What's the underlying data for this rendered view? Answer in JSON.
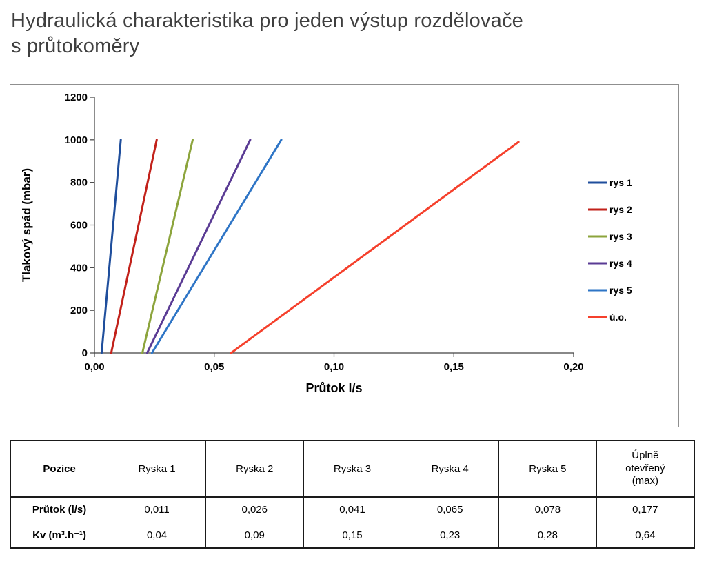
{
  "page": {
    "title_line1": "Hydraulická charakteristika pro jeden výstup rozdělovače",
    "title_line2": "s průtokoměry"
  },
  "chart_data": {
    "type": "line",
    "title": "",
    "xlabel": "Průtok l/s",
    "ylabel": "Tlakový spád (mbar)",
    "xlim": [
      0,
      0.2
    ],
    "ylim": [
      0,
      1200
    ],
    "grid": false,
    "legend_position": "right",
    "x_ticks": [
      0,
      0.05,
      0.1,
      0.15,
      0.2
    ],
    "x_tick_labels": [
      "0,00",
      "0,05",
      "0,10",
      "0,15",
      "0,20"
    ],
    "y_ticks": [
      0,
      200,
      400,
      600,
      800,
      1000,
      1200
    ],
    "y_tick_labels": [
      "0",
      "200",
      "400",
      "600",
      "800",
      "1000",
      "1200"
    ],
    "series": [
      {
        "name": "rys 1",
        "color": "#1F4E9C",
        "points": [
          [
            0.003,
            0
          ],
          [
            0.011,
            1000
          ]
        ]
      },
      {
        "name": "rys 2",
        "color": "#C2211A",
        "points": [
          [
            0.007,
            0
          ],
          [
            0.026,
            1000
          ]
        ]
      },
      {
        "name": "rys 3",
        "color": "#8CA43C",
        "points": [
          [
            0.02,
            0
          ],
          [
            0.041,
            1000
          ]
        ]
      },
      {
        "name": "rys 4",
        "color": "#5A3B94",
        "points": [
          [
            0.022,
            0
          ],
          [
            0.065,
            1000
          ]
        ]
      },
      {
        "name": "rys 5",
        "color": "#2E75C6",
        "points": [
          [
            0.024,
            0
          ],
          [
            0.078,
            1000
          ]
        ]
      },
      {
        "name": "ú.o.",
        "color": "#F5402C",
        "points": [
          [
            0.057,
            0
          ],
          [
            0.177,
            990
          ]
        ]
      }
    ]
  },
  "table": {
    "header": [
      "Pozice",
      "Ryska 1",
      "Ryska 2",
      "Ryska 3",
      "Ryska 4",
      "Ryska 5",
      "Úplně\notevřený\n(max)"
    ],
    "rows": [
      {
        "label": "Průtok (l/s)",
        "values": [
          "0,011",
          "0,026",
          "0,041",
          "0,065",
          "0,078",
          "0,177"
        ]
      },
      {
        "label": "Kv (m³.h⁻¹)",
        "values": [
          "0,04",
          "0,09",
          "0,15",
          "0,23",
          "0,28",
          "0,64"
        ]
      }
    ]
  }
}
